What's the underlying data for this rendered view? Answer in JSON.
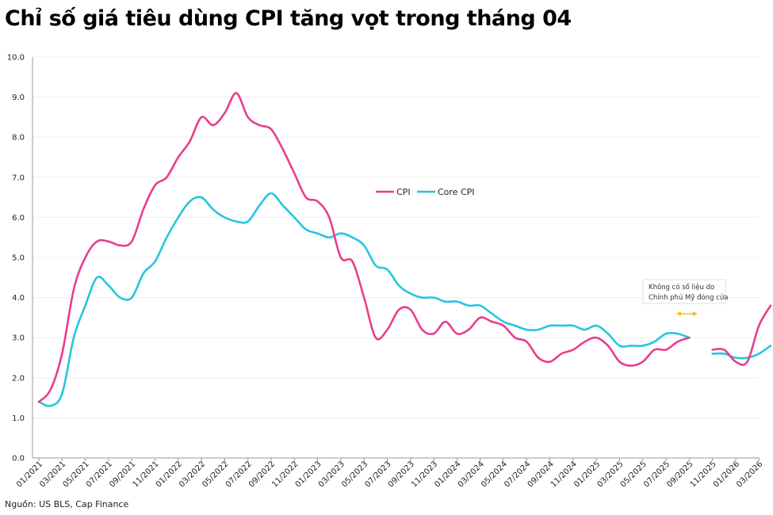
{
  "title": "Chỉ số giá tiêu dùng CPI tăng vọt trong tháng 04",
  "source": "Nguồn: US BLS, Cap Finance",
  "colors": {
    "cpi": "#e93d8c",
    "core": "#25c6df",
    "arrow": "#f5c000",
    "grid": "#eeeeee",
    "axis": "#999999"
  },
  "chart_data": {
    "type": "line",
    "ylim": [
      0,
      10
    ],
    "yticks": [
      "0.0",
      "1.0",
      "2.0",
      "3.0",
      "4.0",
      "5.0",
      "6.0",
      "7.0",
      "8.0",
      "9.0",
      "10.0"
    ],
    "x_labels": [
      "01/2021",
      "03/2021",
      "05/2021",
      "07/2021",
      "09/2021",
      "11/2021",
      "01/2022",
      "03/2022",
      "05/2022",
      "07/2022",
      "09/2022",
      "11/2022",
      "01/2023",
      "03/2023",
      "05/2023",
      "07/2023",
      "09/2023",
      "11/2023",
      "01/2024",
      "03/2024",
      "05/2024",
      "07/2024",
      "09/2024",
      "11/2024",
      "01/2025",
      "03/2025",
      "05/2025",
      "07/2025",
      "09/2025",
      "11/2025",
      "01/2026",
      "03/2026"
    ],
    "n_months": 64,
    "legend": {
      "placement": "center-right"
    },
    "series": [
      {
        "name": "CPI",
        "key": "cpi",
        "segments": [
          {
            "start_month": 0,
            "values": [
              1.4,
              1.7,
              2.6,
              4.2,
              5.0,
              5.4,
              5.4,
              5.3,
              5.4,
              6.2,
              6.8,
              7.0,
              7.5,
              7.9,
              8.5,
              8.3,
              8.6,
              9.1,
              8.5,
              8.3,
              8.2,
              7.7,
              7.1,
              6.5,
              6.4,
              6.0,
              5.0,
              4.9,
              4.0,
              3.0,
              3.2,
              3.7,
              3.7,
              3.2,
              3.1,
              3.4,
              3.1,
              3.2,
              3.5,
              3.4,
              3.3,
              3.0,
              2.9,
              2.5,
              2.4,
              2.6,
              2.7,
              2.9,
              3.0,
              2.8,
              2.4,
              2.3,
              2.4,
              2.7,
              2.7,
              2.9,
              3.0
            ]
          },
          {
            "start_month": 58,
            "values": [
              2.7,
              2.7,
              2.4,
              2.4,
              3.3,
              3.8
            ]
          }
        ]
      },
      {
        "name": "Core CPI",
        "key": "core",
        "segments": [
          {
            "start_month": 0,
            "values": [
              1.4,
              1.3,
              1.6,
              3.0,
              3.8,
              4.5,
              4.3,
              4.0,
              4.0,
              4.6,
              4.9,
              5.5,
              6.0,
              6.4,
              6.5,
              6.2,
              6.0,
              5.9,
              5.9,
              6.3,
              6.6,
              6.3,
              6.0,
              5.7,
              5.6,
              5.5,
              5.6,
              5.5,
              5.3,
              4.8,
              4.7,
              4.3,
              4.1,
              4.0,
              4.0,
              3.9,
              3.9,
              3.8,
              3.8,
              3.6,
              3.4,
              3.3,
              3.2,
              3.2,
              3.3,
              3.3,
              3.3,
              3.2,
              3.3,
              3.1,
              2.8,
              2.8,
              2.8,
              2.9,
              3.1,
              3.1,
              3.0
            ]
          },
          {
            "start_month": 58,
            "values": [
              2.6,
              2.6,
              2.5,
              2.5,
              2.6,
              2.8
            ]
          }
        ]
      }
    ],
    "annotation": {
      "line1": "Không có số liệu do",
      "line2": "Chính phủ Mỹ đóng cửa"
    }
  }
}
